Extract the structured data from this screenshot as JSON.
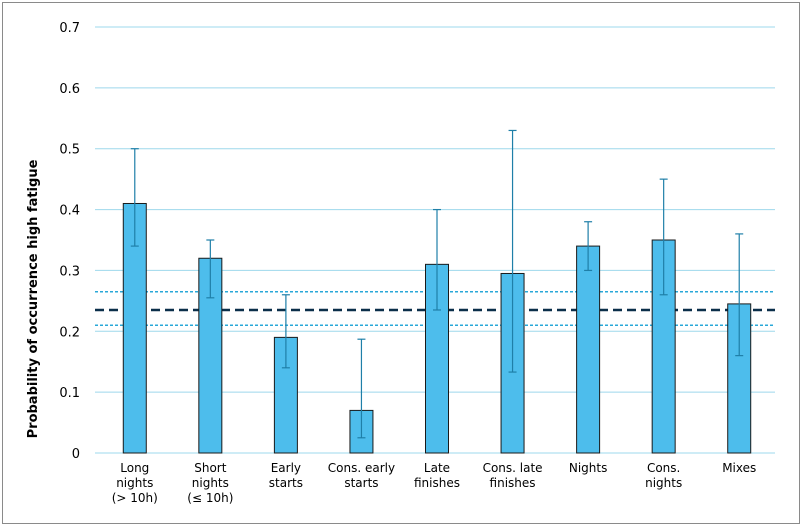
{
  "chart_data": {
    "type": "bar",
    "title": "",
    "xlabel": "",
    "ylabel": "Probability of occurrence high fatigue",
    "ylim": [
      0,
      0.7
    ],
    "yticks": [
      "0",
      "0.1",
      "0.2",
      "0.3",
      "0.4",
      "0.5",
      "0.6",
      "0.7"
    ],
    "grid": true,
    "categories": [
      [
        "Long",
        "nights",
        "(> 10h)"
      ],
      [
        "Short",
        "nights",
        "(≤ 10h)"
      ],
      [
        "Early",
        "starts"
      ],
      [
        "Cons. early",
        "starts"
      ],
      [
        "Late",
        "finishes"
      ],
      [
        "Cons. late",
        "finishes"
      ],
      [
        "Nights"
      ],
      [
        "Cons.",
        "nights"
      ],
      [
        "Mixes"
      ]
    ],
    "values": [
      0.41,
      0.32,
      0.19,
      0.07,
      0.31,
      0.295,
      0.34,
      0.35,
      0.245
    ],
    "error_low": [
      0.34,
      0.255,
      0.14,
      0.025,
      0.235,
      0.133,
      0.3,
      0.26,
      0.16
    ],
    "error_high": [
      0.5,
      0.35,
      0.26,
      0.187,
      0.4,
      0.53,
      0.38,
      0.45,
      0.36
    ],
    "reference_line": {
      "mean": 0.235,
      "ci_low": 0.21,
      "ci_high": 0.265
    },
    "colors": {
      "bar_fill": "#4DBDEC",
      "bar_stroke": "#1a1a1a",
      "error_bar": "#1F7FA8",
      "grid": "#9ED8EC",
      "reference_mean": "#0B2F4A",
      "reference_ci": "#2AA8D8"
    }
  }
}
